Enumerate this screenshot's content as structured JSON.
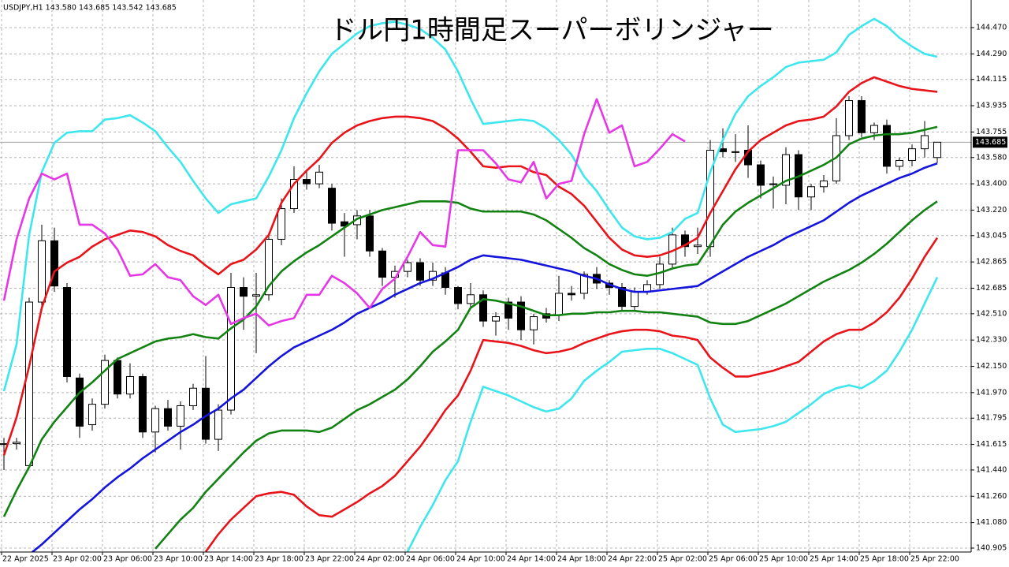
{
  "chart_data": {
    "type": "candlestick",
    "header": "USDJPY,H1  143.580 143.685 143.542 143.685",
    "title": "ドル円1時間足スーパーボリンジャー",
    "categories": [
      "22 Apr 2025",
      null,
      null,
      null,
      "23 Apr 02:00",
      null,
      null,
      null,
      "23 Apr 06:00",
      null,
      null,
      null,
      "23 Apr 10:00",
      null,
      null,
      null,
      "23 Apr 14:00",
      null,
      null,
      null,
      "23 Apr 18:00",
      null,
      null,
      null,
      "23 Apr 22:00",
      null,
      null,
      null,
      "24 Apr 02:00",
      null,
      null,
      null,
      "24 Apr 06:00",
      null,
      null,
      null,
      "24 Apr 10:00",
      null,
      null,
      null,
      "24 Apr 14:00",
      null,
      null,
      null,
      "24 Apr 18:00",
      null,
      null,
      null,
      "24 Apr 22:00",
      null,
      null,
      null,
      "25 Apr 02:00",
      null,
      null,
      null,
      "25 Apr 06:00",
      null,
      null,
      null,
      "25 Apr 10:00",
      null,
      null,
      null,
      "25 Apr 14:00",
      null,
      null,
      null,
      "25 Apr 18:00",
      null,
      null,
      null,
      "25 Apr 22:00",
      null,
      null
    ],
    "open": [
      141.62,
      141.62,
      141.47,
      142.59,
      143.01,
      142.69,
      142.07,
      141.75,
      141.89,
      142.19,
      141.96,
      142.08,
      141.7,
      141.86,
      141.74,
      141.88,
      142.0,
      141.65,
      141.85,
      142.69,
      142.63,
      142.64,
      143.02,
      143.23,
      143.43,
      143.4,
      143.37,
      143.14,
      143.12,
      143.18,
      142.94,
      142.76,
      142.8,
      142.86,
      142.74,
      142.79,
      142.69,
      142.58,
      142.64,
      142.46,
      142.59,
      142.59,
      142.4,
      142.51,
      142.5,
      142.65,
      142.65,
      142.78,
      142.72,
      142.69,
      142.56,
      142.66,
      142.71,
      142.85,
      143.05,
      142.97,
      142.97,
      143.64,
      143.62,
      143.63,
      143.53,
      143.4,
      143.39,
      143.6,
      143.31,
      143.38,
      143.42,
      143.73,
      143.97,
      143.75,
      143.8,
      143.52,
      143.56,
      143.64,
      143.58
    ],
    "high": [
      141.66,
      141.66,
      142.62,
      143.12,
      143.1,
      142.72,
      142.1,
      141.93,
      142.23,
      142.21,
      142.17,
      142.1,
      141.88,
      141.92,
      141.91,
      142.03,
      142.22,
      141.89,
      142.79,
      142.76,
      142.79,
      143.05,
      143.3,
      143.52,
      143.5,
      143.53,
      143.4,
      143.2,
      143.22,
      143.22,
      142.96,
      142.84,
      142.88,
      142.89,
      142.86,
      142.83,
      142.7,
      142.72,
      142.67,
      142.52,
      142.62,
      142.63,
      142.51,
      142.55,
      142.77,
      142.7,
      142.8,
      142.83,
      142.74,
      142.72,
      142.69,
      142.74,
      142.9,
      143.1,
      143.08,
      143.1,
      143.7,
      143.78,
      143.74,
      143.8,
      143.56,
      143.45,
      143.65,
      143.63,
      143.4,
      143.46,
      143.85,
      144.0,
      144.0,
      143.82,
      143.84,
      143.58,
      143.67,
      143.83,
      143.685
    ],
    "low": [
      141.44,
      141.58,
      141.45,
      142.55,
      142.66,
      142.04,
      141.66,
      141.71,
      141.86,
      141.93,
      141.93,
      141.66,
      141.56,
      141.71,
      141.58,
      141.85,
      141.62,
      141.57,
      141.82,
      142.4,
      142.24,
      142.6,
      142.98,
      143.2,
      143.36,
      143.37,
      143.08,
      142.9,
      143.02,
      142.9,
      142.7,
      142.62,
      142.76,
      142.7,
      142.7,
      142.64,
      142.54,
      142.55,
      142.42,
      142.36,
      142.4,
      142.33,
      142.3,
      142.45,
      142.46,
      142.6,
      142.61,
      142.68,
      142.64,
      142.53,
      142.53,
      142.64,
      142.68,
      142.82,
      142.9,
      142.92,
      142.9,
      143.58,
      143.55,
      143.44,
      143.3,
      143.23,
      143.26,
      143.22,
      143.22,
      143.34,
      143.4,
      143.7,
      143.72,
      143.7,
      143.47,
      143.49,
      143.52,
      143.58,
      143.542
    ],
    "close": [
      141.62,
      141.63,
      142.59,
      143.01,
      142.7,
      142.08,
      141.74,
      141.89,
      142.19,
      141.96,
      142.08,
      141.7,
      141.86,
      141.74,
      141.88,
      142.0,
      141.65,
      141.85,
      142.69,
      142.63,
      142.64,
      143.02,
      143.23,
      143.43,
      143.4,
      143.48,
      143.13,
      143.11,
      143.18,
      142.94,
      142.76,
      142.8,
      142.86,
      142.74,
      142.8,
      142.69,
      142.58,
      142.64,
      142.46,
      142.49,
      142.48,
      142.4,
      142.49,
      142.48,
      142.65,
      142.64,
      142.78,
      142.72,
      142.69,
      142.56,
      142.66,
      142.71,
      142.85,
      143.05,
      142.97,
      142.98,
      143.63,
      143.62,
      143.62,
      143.53,
      143.39,
      143.4,
      143.6,
      143.31,
      143.38,
      143.42,
      143.73,
      143.97,
      143.75,
      143.8,
      143.52,
      143.56,
      143.64,
      143.73,
      143.685
    ],
    "up_color": "#ffffff",
    "down_color": "#000000",
    "series": [
      {
        "color": "#3ee6ee",
        "values": [
          141.98,
          142.3,
          143.05,
          143.48,
          143.68,
          143.75,
          143.76,
          143.76,
          143.84,
          143.85,
          143.87,
          143.82,
          143.76,
          143.65,
          143.55,
          143.42,
          143.3,
          143.2,
          143.26,
          143.28,
          143.3,
          143.45,
          143.63,
          143.85,
          144.02,
          144.17,
          144.29,
          144.36,
          144.43,
          144.48,
          144.5,
          144.51,
          144.49,
          144.46,
          144.4,
          144.32,
          144.17,
          143.98,
          143.81,
          143.82,
          143.83,
          143.84,
          143.83,
          143.78,
          143.7,
          143.6,
          143.45,
          143.35,
          143.22,
          143.1,
          143.04,
          143.02,
          143.03,
          143.07,
          143.16,
          143.2,
          143.48,
          143.7,
          143.88,
          144.0,
          144.07,
          144.13,
          144.2,
          144.23,
          144.24,
          144.25,
          144.3,
          144.42,
          144.48,
          144.53,
          144.48,
          144.4,
          144.34,
          144.29,
          144.27
        ]
      },
      {
        "color": "#e8141a",
        "values": [
          141.54,
          141.8,
          142.15,
          142.55,
          142.8,
          142.86,
          142.9,
          142.97,
          143.02,
          143.05,
          143.08,
          143.07,
          143.04,
          142.98,
          142.94,
          142.91,
          142.84,
          142.78,
          142.85,
          142.88,
          142.95,
          143.05,
          143.27,
          143.4,
          143.49,
          143.57,
          143.68,
          143.75,
          143.8,
          143.83,
          143.85,
          143.86,
          143.86,
          143.85,
          143.83,
          143.78,
          143.71,
          143.62,
          143.52,
          143.51,
          143.52,
          143.52,
          143.48,
          143.46,
          143.38,
          143.33,
          143.25,
          143.14,
          143.03,
          142.95,
          142.91,
          142.9,
          142.91,
          142.94,
          142.98,
          143.03,
          143.2,
          143.35,
          143.5,
          143.62,
          143.7,
          143.75,
          143.8,
          143.83,
          143.84,
          143.86,
          143.93,
          144.03,
          144.09,
          144.13,
          144.1,
          144.07,
          144.05,
          144.04,
          144.03
        ]
      },
      {
        "color": "#128212",
        "values": [
          141.12,
          141.3,
          141.46,
          141.65,
          141.77,
          141.87,
          141.97,
          142.04,
          142.12,
          142.2,
          142.24,
          142.28,
          142.32,
          142.34,
          142.35,
          142.37,
          142.35,
          142.34,
          142.41,
          142.47,
          142.56,
          142.7,
          142.8,
          142.87,
          142.93,
          142.98,
          143.04,
          143.1,
          143.16,
          143.19,
          143.22,
          143.24,
          143.26,
          143.28,
          143.28,
          143.28,
          143.27,
          143.23,
          143.21,
          143.21,
          143.21,
          143.21,
          143.19,
          143.15,
          143.09,
          143.03,
          142.96,
          142.91,
          142.85,
          142.81,
          142.78,
          142.77,
          142.79,
          142.82,
          142.84,
          142.85,
          142.98,
          143.12,
          143.21,
          143.27,
          143.32,
          143.37,
          143.42,
          143.45,
          143.49,
          143.53,
          143.58,
          143.67,
          143.71,
          143.73,
          143.74,
          143.74,
          143.75,
          143.77,
          143.79
        ]
      },
      {
        "color": "#1414dc",
        "values": [
          140.7,
          140.78,
          140.86,
          140.93,
          141.01,
          141.09,
          141.17,
          141.24,
          141.32,
          141.39,
          141.45,
          141.52,
          141.58,
          141.64,
          141.7,
          141.75,
          141.81,
          141.86,
          141.93,
          141.99,
          142.07,
          142.15,
          142.22,
          142.28,
          142.32,
          142.36,
          142.4,
          142.45,
          142.51,
          142.55,
          142.59,
          142.64,
          142.68,
          142.72,
          142.75,
          142.79,
          142.83,
          142.88,
          142.91,
          142.9,
          142.89,
          142.88,
          142.86,
          142.84,
          142.82,
          142.8,
          142.77,
          142.75,
          142.71,
          142.68,
          142.66,
          142.66,
          142.67,
          142.68,
          142.69,
          142.7,
          142.75,
          142.8,
          142.85,
          142.9,
          142.94,
          142.98,
          143.03,
          143.07,
          143.11,
          143.15,
          143.21,
          143.27,
          143.32,
          143.36,
          143.4,
          143.44,
          143.47,
          143.51,
          143.54
        ]
      },
      {
        "color": "#128212",
        "values": [
          null,
          null,
          null,
          null,
          null,
          null,
          null,
          null,
          null,
          null,
          null,
          null,
          140.9,
          141.0,
          141.1,
          141.18,
          141.29,
          141.38,
          141.47,
          141.56,
          141.64,
          141.69,
          141.71,
          141.71,
          141.71,
          141.7,
          141.73,
          141.79,
          141.85,
          141.89,
          141.94,
          141.99,
          142.06,
          142.15,
          142.25,
          142.32,
          142.4,
          142.55,
          142.61,
          142.6,
          142.58,
          142.56,
          142.53,
          142.5,
          142.5,
          142.51,
          142.51,
          142.52,
          142.52,
          142.53,
          142.53,
          142.52,
          142.52,
          142.51,
          142.5,
          142.49,
          142.45,
          142.44,
          142.44,
          142.46,
          142.5,
          142.54,
          142.58,
          142.63,
          142.68,
          142.73,
          142.77,
          142.81,
          142.86,
          142.92,
          142.99,
          143.07,
          143.15,
          143.22,
          143.28
        ]
      },
      {
        "color": "#e8141a",
        "values": [
          null,
          null,
          null,
          null,
          null,
          null,
          null,
          null,
          null,
          null,
          null,
          null,
          null,
          null,
          null,
          null,
          140.88,
          141.0,
          141.1,
          141.18,
          141.26,
          141.28,
          141.29,
          141.27,
          141.19,
          141.13,
          141.12,
          141.17,
          141.22,
          141.28,
          141.33,
          141.4,
          141.5,
          141.6,
          141.72,
          141.85,
          141.95,
          142.12,
          142.33,
          142.32,
          142.31,
          142.29,
          142.26,
          142.24,
          142.25,
          142.27,
          142.31,
          142.34,
          142.37,
          142.39,
          142.4,
          142.4,
          142.39,
          142.36,
          142.35,
          142.33,
          142.21,
          142.14,
          142.08,
          142.08,
          142.1,
          142.12,
          142.15,
          142.18,
          142.25,
          142.32,
          142.37,
          142.4,
          142.4,
          142.45,
          142.52,
          142.62,
          142.75,
          142.9,
          143.03
        ]
      },
      {
        "color": "#3ee6ee",
        "values": [
          null,
          null,
          null,
          null,
          null,
          null,
          null,
          null,
          null,
          null,
          null,
          null,
          null,
          null,
          null,
          null,
          null,
          null,
          null,
          null,
          null,
          null,
          null,
          null,
          null,
          null,
          null,
          null,
          null,
          null,
          null,
          null,
          140.88,
          141.05,
          141.2,
          141.37,
          141.5,
          141.77,
          142.01,
          141.98,
          141.95,
          141.91,
          141.87,
          141.84,
          141.86,
          141.93,
          142.05,
          142.12,
          142.18,
          142.25,
          142.26,
          142.27,
          142.27,
          142.24,
          142.2,
          142.16,
          141.93,
          141.75,
          141.7,
          141.71,
          141.72,
          141.74,
          141.77,
          141.83,
          141.89,
          141.96,
          142.0,
          142.02,
          142.0,
          142.05,
          142.12,
          142.25,
          142.4,
          142.58,
          142.76
        ]
      },
      {
        "color": "#e637e6",
        "values": [
          142.6,
          143.02,
          143.3,
          143.47,
          143.43,
          143.47,
          143.12,
          143.12,
          143.06,
          142.95,
          142.77,
          142.78,
          142.85,
          142.76,
          142.74,
          142.63,
          142.57,
          142.64,
          142.44,
          142.48,
          142.51,
          142.43,
          142.46,
          142.48,
          142.64,
          142.64,
          142.77,
          142.72,
          142.65,
          142.55,
          142.68,
          142.75,
          142.9,
          143.07,
          142.98,
          142.97,
          143.63,
          143.63,
          143.63,
          143.54,
          143.43,
          143.41,
          143.55,
          143.3,
          143.4,
          143.42,
          143.74,
          143.98,
          143.75,
          143.8,
          143.52,
          143.55,
          143.64,
          143.74,
          143.69,
          null,
          null,
          null,
          null,
          null,
          null,
          null,
          null,
          null,
          null,
          null,
          null,
          null,
          null,
          null,
          null,
          null,
          null,
          null,
          null
        ]
      }
    ],
    "current_price": 143.685,
    "ylim": [
      140.878,
      144.659
    ],
    "yticks": [
      {
        "value": 144.47,
        "label": "144.470"
      },
      {
        "value": 144.29,
        "label": "144.290"
      },
      {
        "value": 144.115,
        "label": "144.115"
      },
      {
        "value": 143.935,
        "label": "143.935"
      },
      {
        "value": 143.755,
        "label": "143.755"
      },
      {
        "value": 143.58,
        "label": "143.580"
      },
      {
        "value": 143.4,
        "label": "143.400"
      },
      {
        "value": 143.22,
        "label": "143.220"
      },
      {
        "value": 143.045,
        "label": "143.045"
      },
      {
        "value": 142.865,
        "label": "142.865"
      },
      {
        "value": 142.685,
        "label": "142.685"
      },
      {
        "value": 142.51,
        "label": "142.510"
      },
      {
        "value": 142.33,
        "label": "142.330"
      },
      {
        "value": 142.15,
        "label": "142.150"
      },
      {
        "value": 141.97,
        "label": "141.970"
      },
      {
        "value": 141.795,
        "label": "141.795"
      },
      {
        "value": 141.615,
        "label": "141.615"
      },
      {
        "value": 141.44,
        "label": "141.440"
      },
      {
        "value": 141.26,
        "label": "141.260"
      },
      {
        "value": 141.08,
        "label": "141.080"
      },
      {
        "value": 140.905,
        "label": "140.905"
      }
    ],
    "grid": true
  }
}
